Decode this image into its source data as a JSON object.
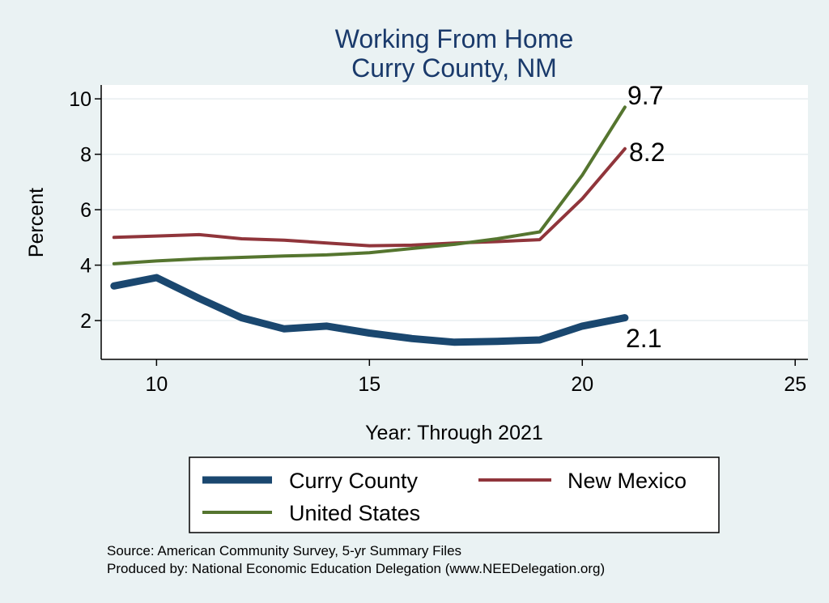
{
  "chart_data": {
    "type": "line",
    "title": "Working From Home",
    "subtitle": "Curry County, NM",
    "xlabel": "Year: Through 2021",
    "ylabel": "Percent",
    "xlim": [
      8.7,
      25.3
    ],
    "ylim": [
      0.6,
      10.5
    ],
    "xticks": [
      10,
      15,
      20,
      25
    ],
    "yticks": [
      2,
      4,
      6,
      8,
      10
    ],
    "grid": true,
    "series": [
      {
        "name": "Curry County",
        "color": "#1a476f",
        "x": [
          9,
          10,
          11,
          12,
          13,
          14,
          15,
          16,
          17,
          18,
          19,
          20,
          21
        ],
        "values": [
          3.25,
          3.55,
          2.8,
          2.1,
          1.7,
          1.8,
          1.55,
          1.35,
          1.22,
          1.25,
          1.3,
          1.8,
          2.1
        ],
        "end_label": "2.1"
      },
      {
        "name": "New Mexico",
        "color": "#90353b",
        "x": [
          9,
          10,
          11,
          12,
          13,
          14,
          15,
          16,
          17,
          18,
          19,
          20,
          21
        ],
        "values": [
          5.0,
          5.05,
          5.1,
          4.95,
          4.9,
          4.8,
          4.7,
          4.72,
          4.8,
          4.85,
          4.92,
          6.4,
          8.2
        ],
        "end_label": "8.2"
      },
      {
        "name": "United States",
        "color": "#55752f",
        "x": [
          9,
          10,
          11,
          12,
          13,
          14,
          15,
          16,
          17,
          18,
          19,
          20,
          21
        ],
        "values": [
          4.05,
          4.15,
          4.23,
          4.28,
          4.33,
          4.37,
          4.45,
          4.6,
          4.75,
          4.95,
          5.2,
          7.25,
          9.7
        ],
        "end_label": "9.7"
      }
    ],
    "legend": {
      "placement": "bottom",
      "entries": [
        "Curry County",
        "New Mexico",
        "United States"
      ]
    },
    "notes": [
      "Source: American Community Survey, 5-yr Summary Files",
      "Produced by: National Economic Education Delegation (www.NEEDelegation.org)"
    ]
  }
}
